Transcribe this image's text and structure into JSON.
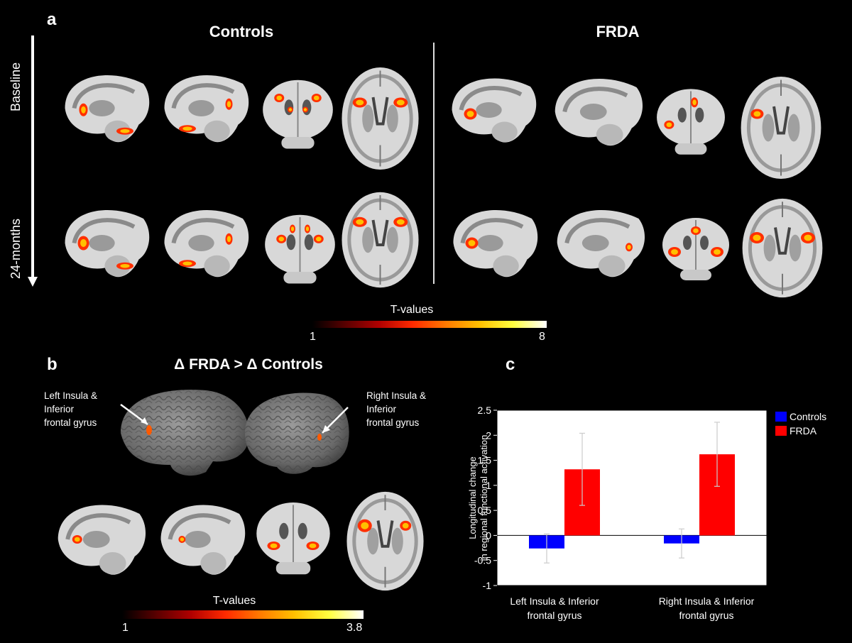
{
  "panel_a": {
    "letter": "a",
    "group_left": "Controls",
    "group_right": "FRDA",
    "row_top": "Baseline",
    "row_bottom": "24-months",
    "colorbar": {
      "title": "T-values",
      "min": "1",
      "max": "8"
    }
  },
  "panel_b": {
    "letter": "b",
    "title": "Δ FRDA > Δ Controls",
    "left_label": [
      "Left Insula &",
      "Inferior",
      "frontal gyrus"
    ],
    "right_label": [
      "Right Insula &",
      "Inferior",
      "frontal gyrus"
    ],
    "colorbar": {
      "title": "T-values",
      "min": "1",
      "max": "3.8"
    }
  },
  "panel_c": {
    "letter": "c"
  },
  "colors": {
    "controls": "#0000ff",
    "frda": "#ff0000",
    "background": "#000000"
  },
  "chart_data": {
    "type": "bar",
    "categories": [
      "Left Insula & Inferior frontal gyrus",
      "Right Insula & Inferior frontal gyrus"
    ],
    "category_lines": [
      [
        "Left Insula & Inferior",
        "frontal gyrus"
      ],
      [
        "Right Insula & Inferior",
        "frontal gyrus"
      ]
    ],
    "series": [
      {
        "name": "Controls",
        "values": [
          -0.26,
          -0.16
        ],
        "error": [
          0.29,
          0.29
        ]
      },
      {
        "name": "FRDA",
        "values": [
          1.32,
          1.62
        ],
        "error": [
          0.72,
          0.64
        ]
      }
    ],
    "ylabel_lines": [
      "Longitudinal change",
      "in regional functional activation"
    ],
    "ylim": [
      -1,
      2.5
    ],
    "yticks": [
      "-1",
      "-0.5",
      "0",
      "0.5",
      "1",
      "1.5",
      "2",
      "2.5"
    ],
    "legend_position": "right"
  }
}
